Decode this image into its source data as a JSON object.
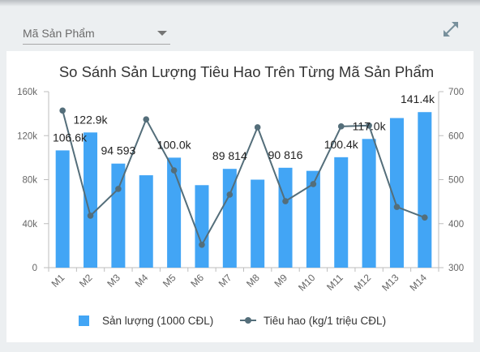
{
  "header": {
    "dropdown_label": "Mã Sản Phẩm"
  },
  "icons": {
    "dropdown_caret": "caret-down-icon",
    "expand": "expand-icon"
  },
  "chart_data": {
    "type": "bar",
    "title": "So Sánh Sản Lượng Tiêu Hao Trên Từng Mã Sản Phẩm",
    "categories": [
      "M1",
      "M2",
      "M3",
      "M4",
      "M5",
      "M6",
      "M7",
      "M8",
      "M9",
      "M10",
      "M11",
      "M12",
      "M13",
      "M14"
    ],
    "series": [
      {
        "name": "Sản lượng (1000 CĐL)",
        "type": "bar",
        "axis": "left",
        "color": "#42a5f5",
        "values": [
          106600,
          122900,
          94593,
          84000,
          100000,
          75000,
          89814,
          80000,
          90816,
          88000,
          100400,
          117000,
          136000,
          141400
        ],
        "data_labels": [
          "106.6k",
          "122.9k",
          "94 593",
          null,
          "100.0k",
          null,
          "89 814",
          null,
          "90 816",
          null,
          "100.4k",
          "117.0k",
          null,
          "141.4k"
        ]
      },
      {
        "name": "Tiêu hao (kg/1 triệu CĐL)",
        "type": "line",
        "axis": "right",
        "color": "#546e7a",
        "values": [
          657,
          418,
          479,
          637,
          521,
          352,
          466,
          619,
          451,
          490,
          621,
          623,
          438,
          414
        ]
      }
    ],
    "y_left": {
      "range": [
        0,
        160000
      ],
      "ticks": [
        0,
        40000,
        80000,
        120000,
        160000
      ],
      "tick_labels": [
        "0",
        "40k",
        "80k",
        "120k",
        "160k"
      ]
    },
    "y_right": {
      "range": [
        300,
        700
      ],
      "ticks": [
        300,
        400,
        500,
        600,
        700
      ],
      "tick_labels": [
        "300",
        "400",
        "500",
        "600",
        "700"
      ]
    },
    "grid": false,
    "legend": "bottom"
  }
}
